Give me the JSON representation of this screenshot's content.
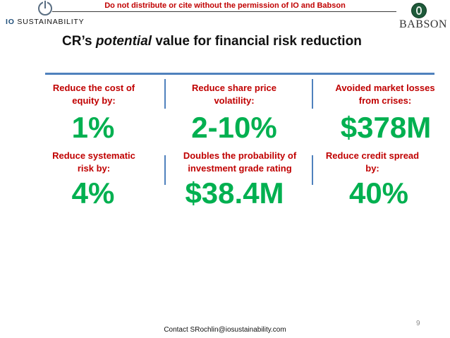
{
  "notice": "Do not distribute or cite without the permission of IO and Babson",
  "logos": {
    "io": {
      "prefix": "IO",
      "suffix": "SUSTAINABILITY"
    },
    "babson": "BABSON"
  },
  "title": {
    "pre": "CR’s ",
    "emph": "potential",
    "post": " value for financial risk reduction"
  },
  "metrics": [
    {
      "label": "Reduce the cost of equity by:",
      "value": "1%"
    },
    {
      "label": "Reduce share price volatility:",
      "value": "2-10%"
    },
    {
      "label": "Avoided market losses from crises:",
      "value": "$378M"
    },
    {
      "label": "Reduce systematic risk by:",
      "value": "4%"
    },
    {
      "label": "Doubles the probability of investment grade rating",
      "value": "$38.4M"
    },
    {
      "label": "Reduce credit spread by:",
      "value": "40%"
    }
  ],
  "colors": {
    "label": "#c00000",
    "value": "#00b050",
    "rule": "#4f81bd"
  },
  "footer": "Contact SRochlin@iosustainability.com",
  "page_number": "9"
}
